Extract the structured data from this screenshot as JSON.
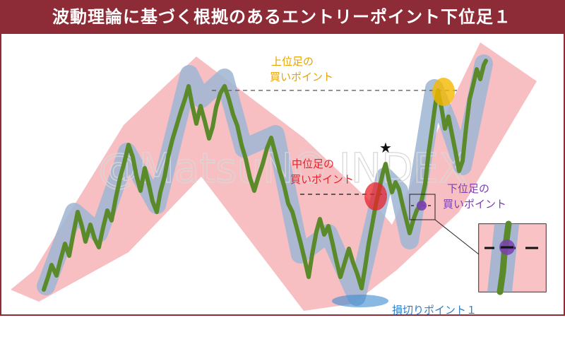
{
  "title": "波動理論に基づく根拠のあるエントリーポイント下位足１",
  "watermark": "@MatsuNO INDEX",
  "labels": {
    "upper_line1": "上位足の",
    "upper_line2": "買いポイント",
    "middle_line1": "中位足の",
    "middle_line2": "買いポイント",
    "lower_line1": "下位足の",
    "lower_line2": "買いポイント",
    "stop_loss": "損切りポイント１"
  },
  "colors": {
    "title_bg": "#8d2b36",
    "channel": "#f4a0a4",
    "wave": "#8fa8c8",
    "price": "#5b8a2a",
    "upper": "#f5b800",
    "middle": "#e8222b",
    "lower": "#7a3fb0",
    "stop": "#3a8ad0"
  },
  "icons": [
    "star-icon",
    "zoom-box-icon"
  ]
}
